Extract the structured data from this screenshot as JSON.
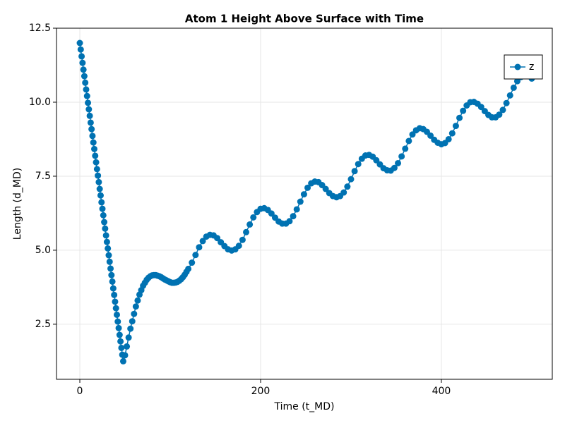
{
  "chart_data": {
    "type": "scatterline",
    "title": "Atom 1 Height Above Surface with Time",
    "x_label": "Time (t_MD)",
    "y_label": "Length (d_MD)",
    "xlim": [
      -25.8,
      522.7
    ],
    "ylim": [
      0.64,
      12.5
    ],
    "xticks": [
      0,
      200,
      400
    ],
    "yticks": [
      2.5,
      {
        "value": 5,
        "label": "5.0"
      },
      7.5,
      {
        "value": 10,
        "label": "10.0"
      },
      12.5
    ],
    "grid": true,
    "legend": "top-right",
    "series": [
      {
        "name": "z",
        "color": "#0072b2",
        "x": [
          0,
          1,
          2,
          3,
          4,
          5,
          6,
          7,
          8,
          9,
          10,
          11,
          12,
          13,
          14,
          15,
          16,
          17,
          18,
          19,
          20,
          21,
          22,
          23,
          24,
          25,
          26,
          27,
          28,
          29,
          30,
          31,
          32,
          33,
          34,
          35,
          36,
          37,
          38,
          39,
          40,
          41,
          42,
          43,
          44,
          45,
          46,
          47,
          48,
          50,
          52,
          54,
          56,
          58,
          60,
          62,
          64,
          66,
          68,
          70,
          72,
          74,
          76,
          78,
          80,
          82,
          84,
          86,
          88,
          90,
          92,
          94,
          96,
          98,
          100,
          102,
          104,
          106,
          108,
          110,
          112,
          114,
          116,
          118,
          120,
          124,
          128,
          132,
          136,
          140,
          144,
          148,
          152,
          156,
          160,
          164,
          168,
          172,
          176,
          180,
          184,
          188,
          192,
          196,
          200,
          204,
          208,
          212,
          216,
          220,
          224,
          228,
          232,
          236,
          240,
          244,
          248,
          252,
          256,
          260,
          264,
          268,
          272,
          276,
          280,
          284,
          288,
          292,
          296,
          300,
          304,
          308,
          312,
          316,
          320,
          324,
          328,
          332,
          336,
          340,
          344,
          348,
          352,
          356,
          360,
          364,
          368,
          372,
          376,
          380,
          384,
          388,
          392,
          396,
          400,
          404,
          408,
          412,
          416,
          420,
          424,
          428,
          432,
          436,
          440,
          444,
          448,
          452,
          456,
          460,
          464,
          468,
          472,
          476,
          480,
          484,
          488,
          492,
          496,
          500
        ],
        "values": [
          12,
          11.78,
          11.55,
          11.33,
          11.1,
          10.88,
          10.66,
          10.43,
          10.21,
          9.98,
          9.76,
          9.54,
          9.31,
          9.09,
          8.86,
          8.64,
          8.42,
          8.19,
          7.97,
          7.74,
          7.52,
          7.3,
          7.07,
          6.85,
          6.62,
          6.4,
          6.18,
          5.95,
          5.73,
          5.5,
          5.28,
          5.06,
          4.83,
          4.61,
          4.38,
          4.16,
          3.94,
          3.71,
          3.49,
          3.26,
          3.04,
          2.82,
          2.59,
          2.37,
          2.14,
          1.92,
          1.7,
          1.47,
          1.25,
          1.45,
          1.75,
          2.05,
          2.35,
          2.6,
          2.85,
          3.1,
          3.3,
          3.5,
          3.65,
          3.8,
          3.9,
          4.0,
          4.07,
          4.12,
          4.15,
          4.16,
          4.16,
          4.14,
          4.12,
          4.09,
          4.05,
          4.01,
          3.98,
          3.95,
          3.92,
          3.9,
          3.9,
          3.91,
          3.93,
          3.97,
          4.02,
          4.09,
          4.17,
          4.27,
          4.37,
          4.58,
          4.84,
          5.1,
          5.31,
          5.46,
          5.52,
          5.5,
          5.41,
          5.27,
          5.14,
          5.03,
          4.99,
          5.03,
          5.15,
          5.35,
          5.61,
          5.87,
          6.11,
          6.29,
          6.4,
          6.42,
          6.36,
          6.24,
          6.1,
          5.97,
          5.9,
          5.9,
          5.98,
          6.15,
          6.38,
          6.64,
          6.89,
          7.11,
          7.26,
          7.32,
          7.3,
          7.2,
          7.07,
          6.93,
          6.83,
          6.79,
          6.83,
          6.95,
          7.15,
          7.4,
          7.67,
          7.91,
          8.09,
          8.2,
          8.22,
          8.16,
          8.04,
          7.9,
          7.77,
          7.7,
          7.69,
          7.78,
          7.94,
          8.17,
          8.43,
          8.69,
          8.91,
          9.05,
          9.12,
          9.09,
          9.0,
          8.87,
          8.73,
          8.63,
          8.58,
          8.62,
          8.75,
          8.95,
          9.2,
          9.47,
          9.71,
          9.89,
          10.0,
          10.01,
          9.95,
          9.84,
          9.7,
          9.57,
          9.49,
          9.49,
          9.58,
          9.74,
          9.97,
          10.23,
          10.49,
          10.71,
          10.85,
          10.91,
          10.89,
          10.8
        ]
      }
    ]
  }
}
